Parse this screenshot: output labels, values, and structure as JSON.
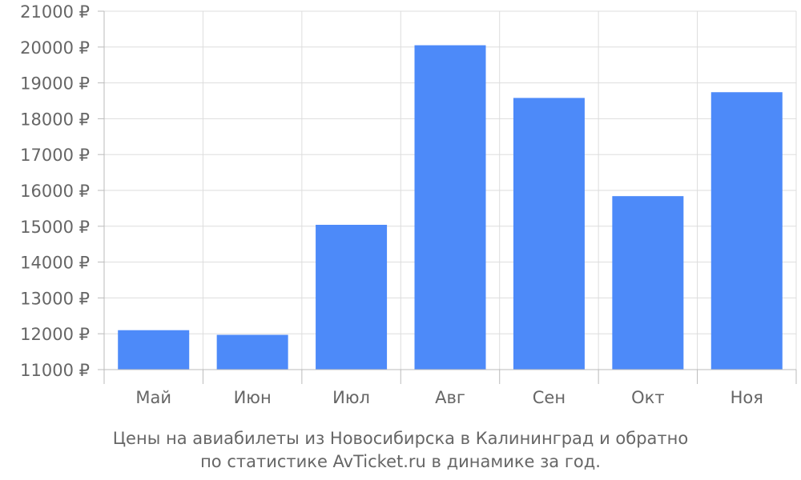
{
  "chart_data": {
    "type": "bar",
    "categories": [
      "Май",
      "Июн",
      "Июл",
      "Авг",
      "Сен",
      "Окт",
      "Ноя"
    ],
    "values": [
      12100,
      11970,
      15040,
      20050,
      18580,
      15840,
      18740
    ],
    "ylim": [
      11000,
      21000
    ],
    "yticks": [
      "11000 ₽",
      "12000 ₽",
      "13000 ₽",
      "14000 ₽",
      "15000 ₽",
      "16000 ₽",
      "17000 ₽",
      "18000 ₽",
      "19000 ₽",
      "20000 ₽",
      "21000 ₽"
    ],
    "ytick_values": [
      11000,
      12000,
      13000,
      14000,
      15000,
      16000,
      17000,
      18000,
      19000,
      20000,
      21000
    ],
    "caption_line1": "Цены на авиабилеты из Новосибирска в Калининград и обратно",
    "caption_line2": "по статистике AvTicket.ru в динамике за год.",
    "grid": true,
    "bar_color": "#4d8af9",
    "grid_color": "#dddddd",
    "axis_color": "#bbbbbb",
    "text_color": "#666666"
  }
}
